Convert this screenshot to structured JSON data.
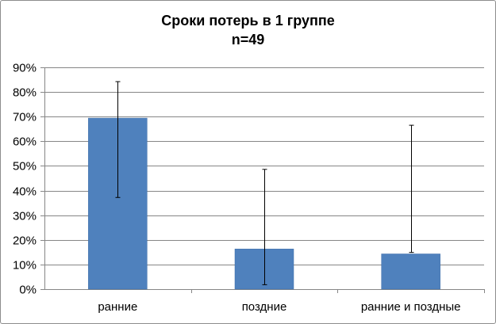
{
  "chart_data": {
    "type": "bar",
    "title": "Сроки потерь в 1 группе",
    "subtitle": "n=49",
    "categories": [
      "ранние",
      "поздние",
      "ранние и поздные"
    ],
    "values": [
      69.4,
      16.3,
      14.3
    ],
    "error_bars": [
      {
        "low": 37.2,
        "high": 84.2
      },
      {
        "low": 1.8,
        "high": 48.6
      },
      {
        "low": 14.9,
        "high": 66.5
      }
    ],
    "y_ticks": [
      "0%",
      "10%",
      "20%",
      "30%",
      "40%",
      "50%",
      "60%",
      "70%",
      "80%",
      "90%"
    ],
    "ylim": [
      0,
      90
    ],
    "y_unit": "%",
    "grid": true,
    "legend": "none",
    "bar_color": "#4f81bd",
    "bar_border_color": "#3f6ea8",
    "grid_color": "#868686",
    "axis_color": "#868686",
    "error_bar_color": "#000000"
  }
}
